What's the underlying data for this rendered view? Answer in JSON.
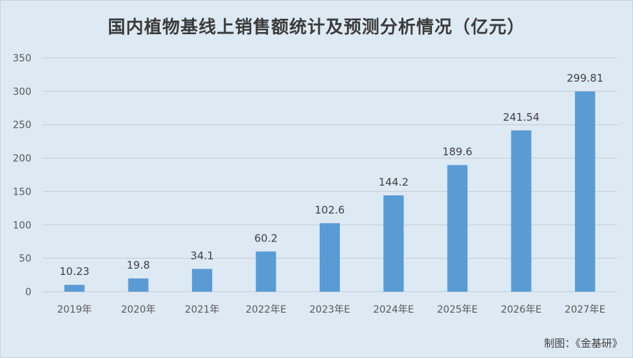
{
  "chart_data": {
    "type": "bar",
    "title": "国内植物基线上销售额统计及预测分析情况（亿元）",
    "categories": [
      "2019年",
      "2020年",
      "2021年",
      "2022年E",
      "2023年E",
      "2024年E",
      "2025年E",
      "2026年E",
      "2027年E"
    ],
    "values": [
      10.23,
      19.8,
      34.1,
      60.2,
      102.6,
      144.2,
      189.6,
      241.54,
      299.81
    ],
    "value_labels": [
      "10.23",
      "19.8",
      "34.1",
      "60.2",
      "102.6",
      "144.2",
      "189.6",
      "241.54",
      "299.81"
    ],
    "ylim": [
      0,
      350
    ],
    "yticks": [
      "0",
      "50",
      "100",
      "150",
      "200",
      "250",
      "300",
      "350"
    ],
    "ytick_values": [
      0,
      50,
      100,
      150,
      200,
      250,
      300,
      350
    ],
    "xlabel": "",
    "ylabel": "",
    "grid": true,
    "legend": "none",
    "bar_color": "#5b9bd5",
    "background_color": "#dde9f3",
    "gridline_color": "#c4ccd4"
  },
  "credit": "制图：《金基研》"
}
